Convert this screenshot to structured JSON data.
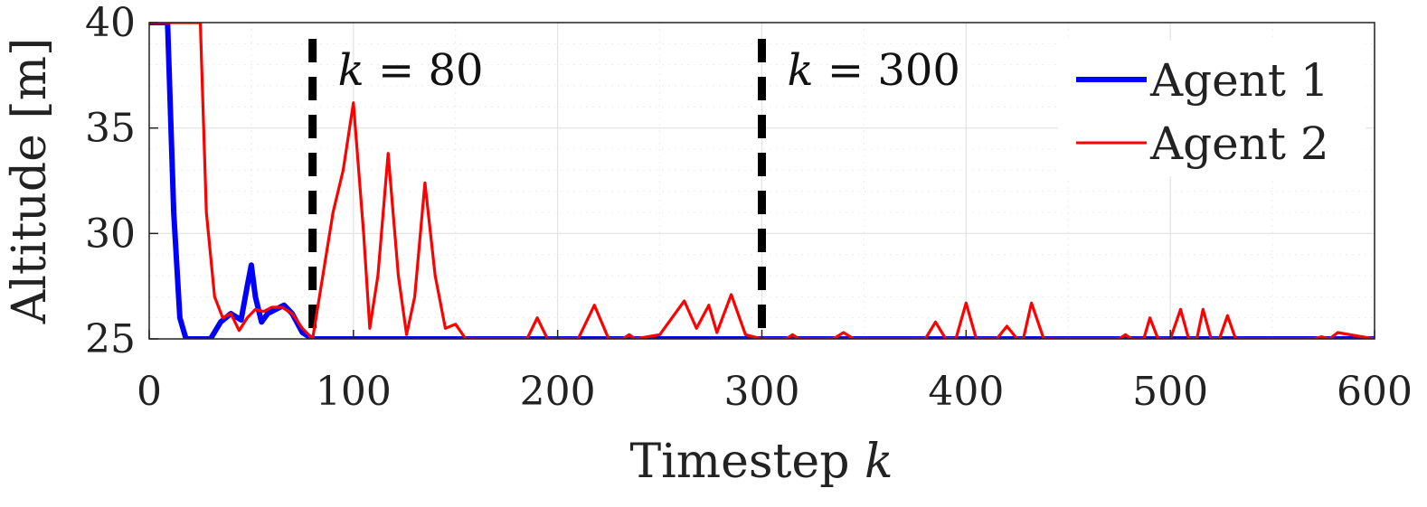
{
  "chart_data": {
    "type": "line",
    "xlabel": "Timestep",
    "xlabel_var": "k",
    "ylabel": "Altitude [m]",
    "xlim": [
      0,
      600
    ],
    "ylim": [
      25,
      40
    ],
    "xticks": [
      "0",
      "100",
      "200",
      "300",
      "400",
      "500",
      "600"
    ],
    "yticks": [
      "25",
      "30",
      "35",
      "40"
    ],
    "grid": true,
    "legend_position": "top-right",
    "vlines": [
      {
        "x": 80,
        "label_var": "k",
        "label_rest": " = 80"
      },
      {
        "x": 300,
        "label_var": "k",
        "label_rest": " = 300"
      }
    ],
    "series": [
      {
        "name": "Agent 1",
        "color": "#0000ff",
        "x": [
          0,
          9,
          12,
          15,
          18,
          22,
          30,
          35,
          40,
          45,
          48,
          50,
          52,
          55,
          58,
          62,
          66,
          70,
          75,
          80,
          100,
          200,
          300,
          400,
          500,
          600
        ],
        "y": [
          40,
          40,
          31,
          26,
          25,
          25,
          25,
          25.8,
          26.2,
          25.9,
          27.5,
          28.5,
          27,
          25.8,
          26.2,
          26.4,
          26.6,
          26.2,
          25.3,
          25,
          25,
          25,
          25,
          25,
          25,
          25
        ]
      },
      {
        "name": "Agent 2",
        "color": "#ff0000",
        "x": [
          0,
          25,
          28,
          32,
          36,
          40,
          44,
          48,
          52,
          56,
          60,
          65,
          70,
          75,
          80,
          85,
          90,
          95,
          100,
          105,
          108,
          112,
          117,
          122,
          126,
          130,
          135,
          140,
          145,
          150,
          155,
          160,
          185,
          190,
          195,
          210,
          218,
          225,
          232,
          235,
          238,
          250,
          256,
          262,
          268,
          274,
          278,
          285,
          292,
          300,
          312,
          315,
          318,
          335,
          340,
          345,
          380,
          385,
          390,
          395,
          400,
          405,
          415,
          420,
          425,
          428,
          432,
          438,
          475,
          478,
          481,
          487,
          490,
          494,
          500,
          505,
          509,
          513,
          516,
          520,
          524,
          528,
          532,
          537,
          570,
          574,
          578,
          582,
          600
        ],
        "y": [
          40,
          40,
          31,
          27,
          26,
          26.2,
          25.4,
          26,
          26.4,
          26.3,
          26.5,
          26.5,
          26.2,
          25.5,
          25,
          28,
          31,
          33,
          36.2,
          30,
          25.5,
          28,
          33.8,
          28,
          25.2,
          27,
          32.4,
          28,
          25.5,
          25.7,
          25,
          25,
          25,
          26,
          25,
          25,
          26.6,
          25,
          25,
          25.2,
          25,
          25.2,
          26,
          26.8,
          25.5,
          26.6,
          25.3,
          27.1,
          25.2,
          25,
          25,
          25.2,
          25,
          25,
          25.3,
          25,
          25,
          25.8,
          25,
          25,
          26.7,
          25,
          25,
          25.6,
          25,
          25,
          26.7,
          25,
          25,
          25.2,
          25,
          25,
          26,
          25,
          25,
          26.4,
          25,
          25,
          26.4,
          25,
          25,
          26.1,
          25,
          25,
          25,
          25.1,
          25,
          25.3,
          25
        ]
      }
    ]
  }
}
